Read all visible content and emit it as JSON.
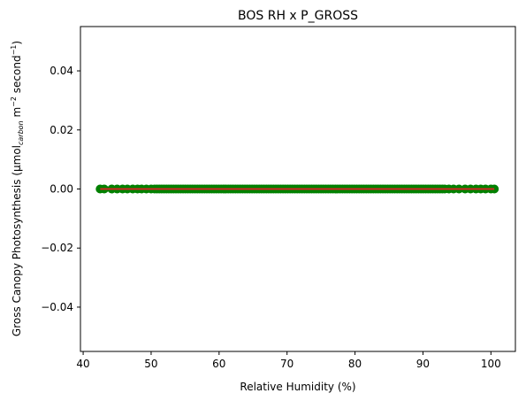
{
  "chart_data": {
    "type": "scatter",
    "title": "BOS RH x P_GROSS",
    "xlabel": "Relative Humidity (%)",
    "ylabel": {
      "prefix": "Gross Canopy Photosynthesis (µmol",
      "subscript": "carbon",
      "middle": " m",
      "sup1": "−2",
      "middle2": " second",
      "sup2": "−1",
      "suffix": ")"
    },
    "xlim": [
      39.6,
      103.6
    ],
    "ylim": [
      -0.055,
      0.055
    ],
    "xticks": [
      40,
      50,
      60,
      70,
      80,
      90,
      100
    ],
    "yticks": [
      -0.04,
      -0.02,
      0.0,
      0.02,
      0.04
    ],
    "ytick_labels": [
      "−0.04",
      "−0.02",
      "0.00",
      "0.02",
      "0.04"
    ],
    "grid": false,
    "series": [
      {
        "marker_color": "#008000",
        "x_range": [
          42.5,
          100.5
        ],
        "y_value": 0.0,
        "dense_x_range": [
          50.5,
          93.5
        ],
        "sparse_x": [
          42.5,
          43.1,
          44.2,
          45.0,
          45.8,
          46.5,
          47.3,
          48.0,
          48.6,
          49.3,
          50.0,
          93.8,
          94.5,
          95.3,
          96.2,
          97.0,
          97.8,
          98.5,
          99.2,
          100.0,
          100.5
        ]
      },
      {
        "line_color": "#d62728",
        "x_range": [
          42.5,
          100.5
        ],
        "y_value": 0.0
      }
    ]
  }
}
